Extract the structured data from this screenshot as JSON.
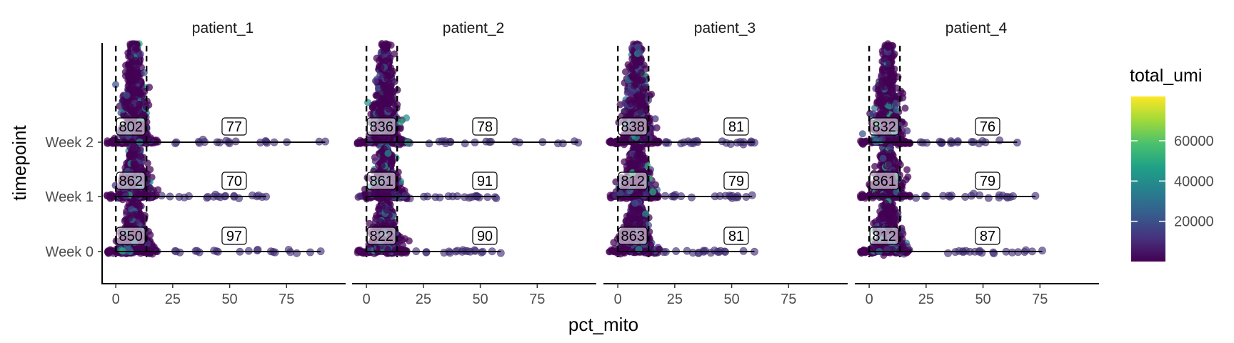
{
  "chart_data": {
    "type": "scatter",
    "subtype": "ridgeline-jitter",
    "xlabel": "pct_mito",
    "ylabel": "timepoint",
    "x_ticks": [
      0,
      25,
      50,
      75
    ],
    "xlim": [
      -6,
      100
    ],
    "timepoints": [
      "Week 0",
      "Week 1",
      "Week 2"
    ],
    "threshold_lines": [
      0,
      13.5
    ],
    "grid": false,
    "colorbar": {
      "title": "total_umi",
      "ticks": [
        20000,
        40000,
        60000
      ],
      "range": [
        0,
        82000
      ],
      "colors": [
        "#440154",
        "#46327e",
        "#365c8d",
        "#277f8e",
        "#1fa187",
        "#4ac16d",
        "#a0da39",
        "#fde725"
      ],
      "placement": "right"
    },
    "panels": [
      {
        "name": "patient_1",
        "xmax": [
          90,
          66,
          92
        ],
        "in_counts": [
          850,
          862,
          802
        ],
        "out_counts": [
          97,
          70,
          77
        ]
      },
      {
        "name": "patient_2",
        "xmax": [
          59,
          57,
          93
        ],
        "in_counts": [
          822,
          861,
          836
        ],
        "out_counts": [
          90,
          91,
          78
        ]
      },
      {
        "name": "patient_3",
        "xmax": [
          60,
          59,
          60
        ],
        "in_counts": [
          863,
          812,
          838
        ],
        "out_counts": [
          81,
          79,
          81
        ]
      },
      {
        "name": "patient_4",
        "xmax": [
          76,
          73,
          65
        ],
        "in_counts": [
          812,
          861,
          832
        ],
        "out_counts": [
          87,
          79,
          76
        ]
      }
    ]
  }
}
